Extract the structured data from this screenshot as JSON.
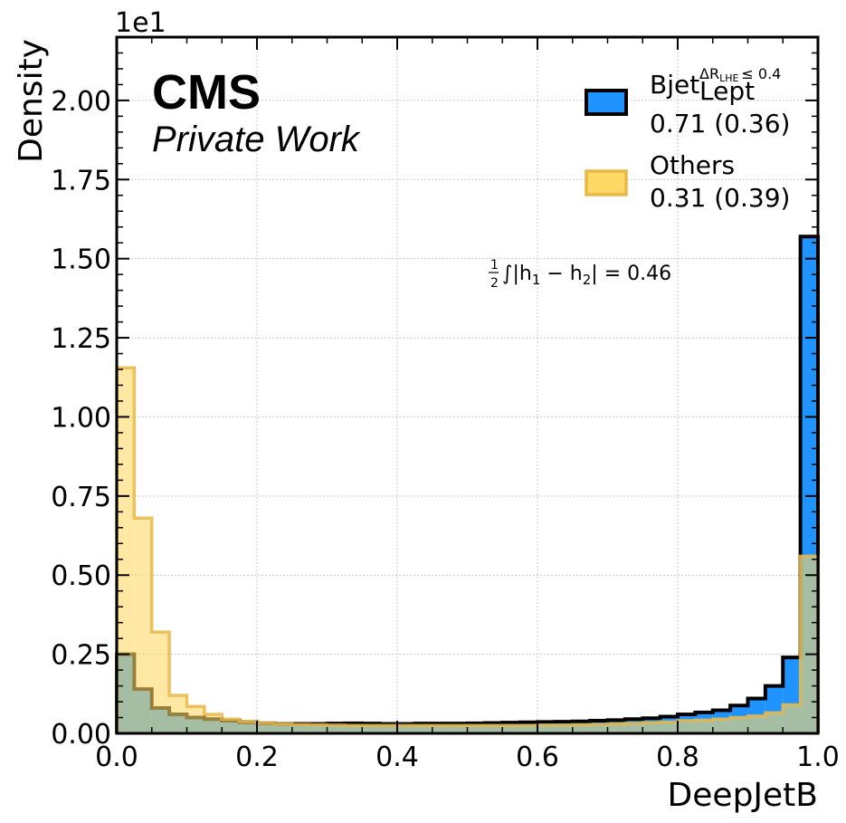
{
  "chart_data": {
    "type": "histogram",
    "xlabel": "DeepJetB",
    "ylabel": "Density",
    "y_exponent_label": "1e1",
    "xlim": [
      0.0,
      1.0
    ],
    "ylim": [
      0.0,
      2.2
    ],
    "x_ticks": [
      0.0,
      0.2,
      0.4,
      0.6,
      0.8,
      1.0
    ],
    "x_tick_labels": [
      "0.0",
      "0.2",
      "0.4",
      "0.6",
      "0.8",
      "1.0"
    ],
    "y_ticks": [
      0.0,
      0.25,
      0.5,
      0.75,
      1.0,
      1.25,
      1.5,
      1.75,
      2.0
    ],
    "y_tick_labels": [
      "0.00",
      "0.25",
      "0.50",
      "0.75",
      "1.00",
      "1.25",
      "1.50",
      "1.75",
      "2.00"
    ],
    "grid": true,
    "bin_edges": [
      0.0,
      0.025,
      0.05,
      0.075,
      0.1,
      0.125,
      0.15,
      0.175,
      0.2,
      0.225,
      0.25,
      0.275,
      0.3,
      0.325,
      0.35,
      0.375,
      0.4,
      0.425,
      0.45,
      0.475,
      0.5,
      0.525,
      0.55,
      0.575,
      0.6,
      0.625,
      0.65,
      0.675,
      0.7,
      0.725,
      0.75,
      0.775,
      0.8,
      0.825,
      0.85,
      0.875,
      0.9,
      0.925,
      0.95,
      0.975,
      1.0
    ],
    "series": [
      {
        "label_main": "Bjet",
        "label_sup": "ΔR",
        "label_sup_sub": "LHE",
        "label_sup_tail": "≤ 0.4",
        "label_sub": "Lept",
        "stats": "0.71 (0.36)",
        "color": "#1f93ff",
        "edge": "#000000",
        "values": [
          0.25,
          0.14,
          0.08,
          0.06,
          0.05,
          0.045,
          0.04,
          0.035,
          0.032,
          0.03,
          0.03,
          0.03,
          0.031,
          0.032,
          0.031,
          0.03,
          0.03,
          0.031,
          0.031,
          0.031,
          0.032,
          0.033,
          0.034,
          0.035,
          0.036,
          0.037,
          0.038,
          0.04,
          0.042,
          0.045,
          0.048,
          0.053,
          0.06,
          0.066,
          0.073,
          0.088,
          0.11,
          0.15,
          0.24,
          1.57
        ]
      },
      {
        "label_main": "Others",
        "stats": "0.31 (0.39)",
        "color": "#ffd966",
        "edge": "#e8b84a",
        "values": [
          1.155,
          0.68,
          0.32,
          0.12,
          0.085,
          0.06,
          0.045,
          0.038,
          0.033,
          0.03,
          0.028,
          0.027,
          0.026,
          0.025,
          0.025,
          0.025,
          0.025,
          0.025,
          0.025,
          0.025,
          0.025,
          0.025,
          0.025,
          0.025,
          0.026,
          0.026,
          0.027,
          0.028,
          0.03,
          0.032,
          0.034,
          0.036,
          0.04,
          0.042,
          0.045,
          0.05,
          0.055,
          0.065,
          0.09,
          0.56
        ]
      }
    ],
    "annotation": {
      "frac_num": "1",
      "frac_den": "2",
      "text_a": "∫|h",
      "sub1": "1",
      "text_b": " − h",
      "sub2": "2",
      "text_c": "| = 0.46"
    }
  },
  "badge": {
    "title": "CMS",
    "subtitle": "Private Work"
  }
}
